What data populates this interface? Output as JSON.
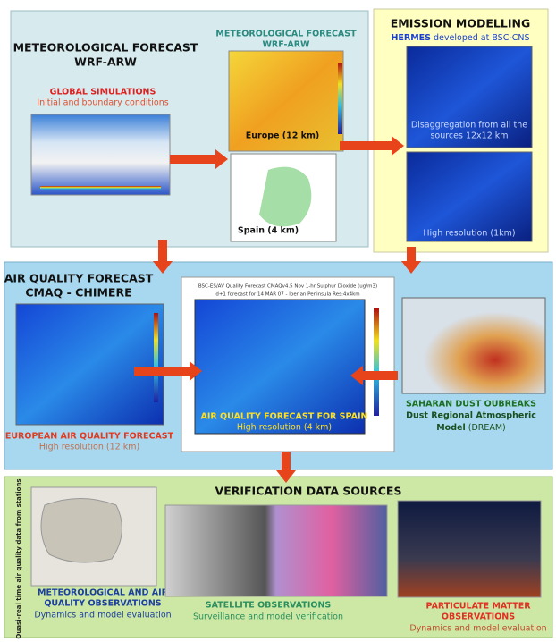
{
  "meteorological": {
    "title": "METEOROLOGICAL FORECAST",
    "subtitle": "WRF-ARW",
    "global_title": "GLOBAL SIMULATIONS",
    "global_subtitle": "Initial and boundary conditions",
    "map_title": "METEOROLOGICAL FORECAST",
    "map_subtitle": "WRF-ARW",
    "europe_label": "Europe (12 km)",
    "spain_label": "Spain (4 km)"
  },
  "emission": {
    "title": "EMISSION MODELLING",
    "hermes": "HERMES",
    "developed": "developed at BSC-CNS",
    "disaggregation": [
      "Disaggregation from all the",
      "sources 12x12 km"
    ],
    "high_resolution": "High resolution (1km)"
  },
  "air_quality": {
    "title": "AIR QUALITY FORECAST",
    "subtitle": "CMAQ - CHIMERE",
    "european_title": "EUROPEAN AIR QUALITY FORECAST",
    "european_subtitle": "High resolution (12 km)",
    "spain_header": [
      "BSC-ES/AV Quality Forecast CMAQv4.5 Nov 1-hr Sulphur Dioxide (ug/m3)",
      "d+1 forecast for 14 MAR 07 - Iberian Peninsula Res:4x4km"
    ],
    "spain_title": "AIR QUALITY FORECAST FOR SPAIN",
    "spain_subtitle": "High resolution (4 km)",
    "dust_title": "SAHARAN DUST OUBREAKS",
    "dust_line": "Dust Regional Atmospheric",
    "dust_model": "Model",
    "dust_acronym": "(DREAM)"
  },
  "verification": {
    "title": "VERIFICATION DATA SOURCES",
    "side_note": "Quasi-real time air quality data from stations",
    "stations_title": [
      "METEOROLOGICAL AND AIR",
      "QUALITY OBSERVATIONS"
    ],
    "stations_subtitle": "Dynamics and model evaluation",
    "satellite_title": "SATELLITE OBSERVATIONS",
    "satellite_subtitle": "Surveillance and model verification",
    "pm_title": [
      "PARTICULATE MATTER",
      "OBSERVATIONS"
    ],
    "pm_subtitle": "Dynamics and model evaluation"
  }
}
